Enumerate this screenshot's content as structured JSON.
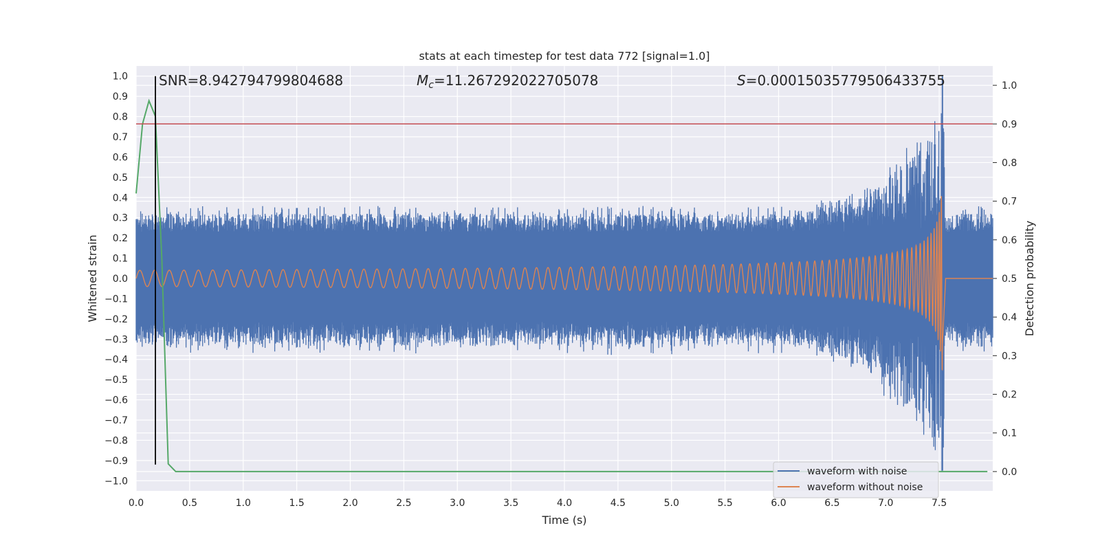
{
  "chart_data": {
    "type": "line",
    "title": "stats at each timestep for test data 772 [signal=1.0]",
    "xlabel": "Time (s)",
    "ylabel": "Whitened strain",
    "y2label": "Detection probability",
    "xlim": [
      0.0,
      8.0
    ],
    "ylim": [
      -1.05,
      1.05
    ],
    "y2lim": [
      -0.05,
      1.05
    ],
    "xticks": [
      "0.0",
      "0.5",
      "1.0",
      "1.5",
      "2.0",
      "2.5",
      "3.0",
      "3.5",
      "4.0",
      "4.5",
      "5.0",
      "5.5",
      "6.0",
      "6.5",
      "7.0",
      "7.5"
    ],
    "yticks": [
      "1.0",
      "0.9",
      "0.8",
      "0.7",
      "0.6",
      "0.5",
      "0.4",
      "0.3",
      "0.2",
      "0.1",
      "0.0",
      "−0.1",
      "−0.2",
      "−0.3",
      "−0.4",
      "−0.5",
      "−0.6",
      "−0.7",
      "−0.8",
      "−0.9",
      "−1.0"
    ],
    "y2ticks": [
      "1.0",
      "0.9",
      "0.8",
      "0.7",
      "0.6",
      "0.5",
      "0.4",
      "0.3",
      "0.2",
      "0.1",
      "0.0"
    ],
    "grid": true,
    "legend_position": "lower-right",
    "annotations": {
      "snr": "SNR=8.942794799804688",
      "mc_symbol": "M",
      "mc_sub": "c",
      "mc_value": "=11.267292022705078",
      "s_symbol": "S",
      "s_value": "=0.00015035779506433755"
    },
    "series": [
      {
        "name": "waveform with noise",
        "color": "#4c72b0",
        "axis": "left",
        "noise_band": [
          -0.32,
          0.32
        ],
        "peak_time": 7.53,
        "peak_value": 1.0
      },
      {
        "name": "waveform without noise",
        "color": "#dd8452",
        "axis": "left",
        "chirp_end_time": 7.53,
        "amplitude_start": 0.04,
        "amplitude_end": 0.9
      },
      {
        "name": "",
        "color": "#55a868",
        "axis": "right",
        "x": [
          0.0,
          0.06,
          0.12,
          0.18,
          0.24,
          0.3,
          0.37,
          7.95
        ],
        "y": [
          0.72,
          0.9,
          0.96,
          0.92,
          0.55,
          0.02,
          0.0,
          0.0
        ]
      }
    ],
    "threshold": {
      "axis": "right",
      "value": 0.9,
      "color": "#c44e52"
    },
    "vline": {
      "x": 0.18,
      "ymin": -0.92,
      "ymax": 1.0,
      "color": "#000000"
    }
  }
}
